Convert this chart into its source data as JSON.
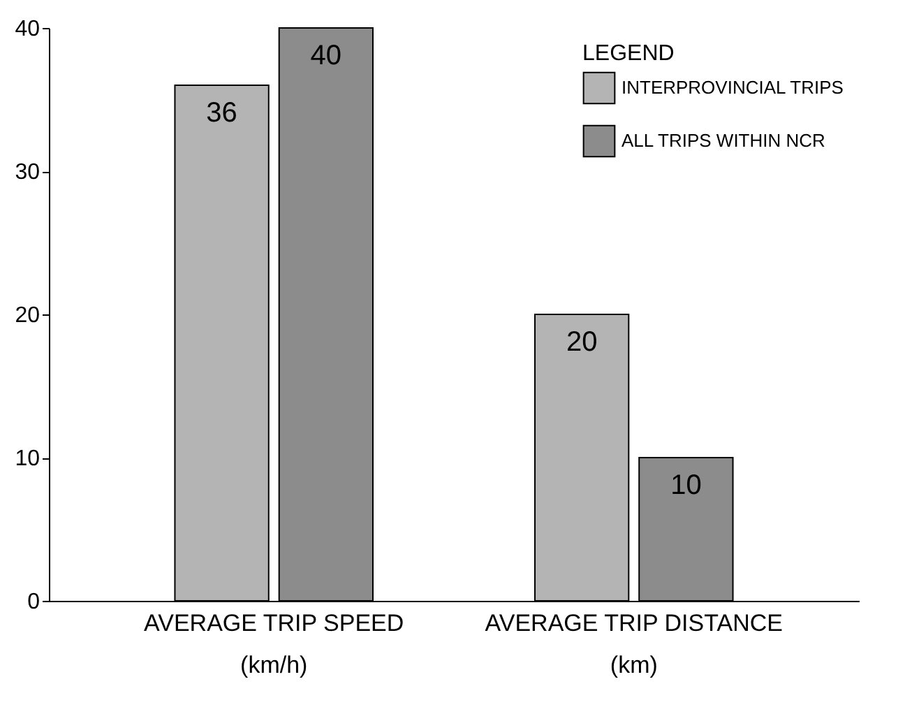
{
  "chart_data": {
    "type": "bar",
    "legend_title": "LEGEND",
    "categories": [
      "AVERAGE TRIP SPEED\n(km/h)",
      "AVERAGE TRIP DISTANCE\n(km)"
    ],
    "series": [
      {
        "name": "INTERPROVINCIAL TRIPS",
        "color": "#b4b4b4",
        "values": [
          36,
          20
        ]
      },
      {
        "name": "ALL TRIPS WITHIN NCR",
        "color": "#8c8c8c",
        "values": [
          40,
          10
        ]
      }
    ],
    "ylim": [
      0,
      40
    ],
    "yticks": [
      0,
      10,
      20,
      30,
      40
    ],
    "grid": false,
    "legend": "top right",
    "data_labels": true
  }
}
